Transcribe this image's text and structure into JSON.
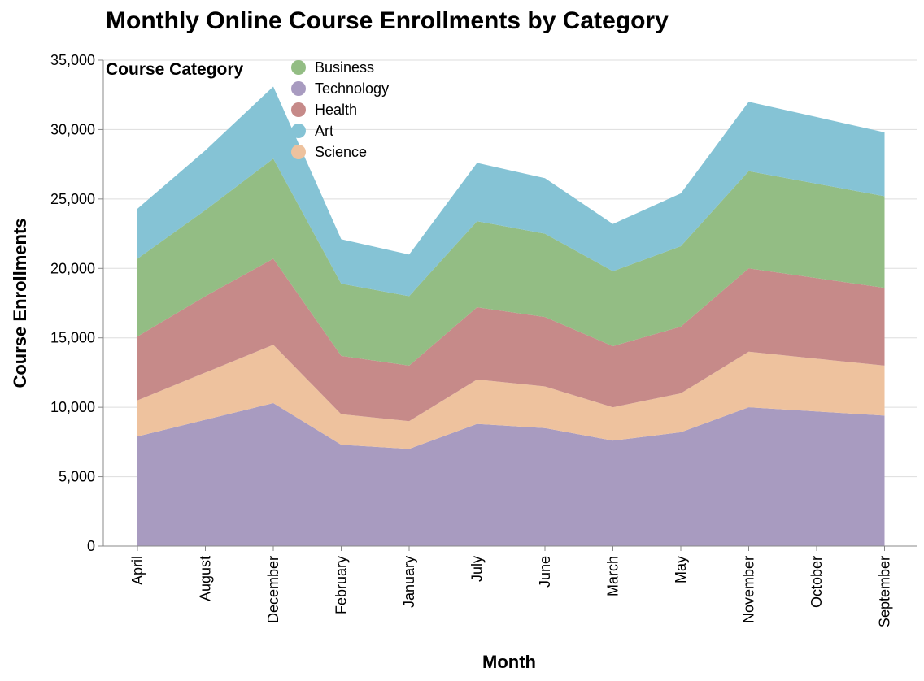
{
  "chart_data": {
    "type": "area",
    "stacked": true,
    "title": "Monthly Online Course Enrollments by Category",
    "xlabel": "Month",
    "ylabel": "Course Enrollments",
    "ylim": [
      0,
      35000
    ],
    "yticks": [
      "0",
      "5,000",
      "10,000",
      "15,000",
      "20,000",
      "25,000",
      "30,000",
      "35,000"
    ],
    "ytick_values": [
      0,
      5000,
      10000,
      15000,
      20000,
      25000,
      30000,
      35000
    ],
    "grid": "horizontal",
    "categories": [
      "April",
      "August",
      "December",
      "February",
      "January",
      "July",
      "June",
      "March",
      "May",
      "November",
      "October",
      "September"
    ],
    "legend": {
      "title": "Course Category",
      "placement": "top-left",
      "entries": [
        "Business",
        "Technology",
        "Health",
        "Art",
        "Science"
      ]
    },
    "series": [
      {
        "name": "Technology",
        "color": "#a89bc0",
        "values": [
          7900,
          9100,
          10300,
          7300,
          7000,
          8800,
          8500,
          7600,
          8200,
          10000,
          9700,
          9400
        ]
      },
      {
        "name": "Science",
        "color": "#eec29e",
        "values": [
          2600,
          3400,
          4200,
          2200,
          2000,
          3200,
          3000,
          2400,
          2800,
          4000,
          3800,
          3600
        ]
      },
      {
        "name": "Health",
        "color": "#c68a89",
        "values": [
          4600,
          5500,
          6200,
          4200,
          4000,
          5200,
          5000,
          4400,
          4800,
          6000,
          5800,
          5600
        ]
      },
      {
        "name": "Business",
        "color": "#93bd84",
        "values": [
          5600,
          6200,
          7200,
          5200,
          5000,
          6200,
          6000,
          5400,
          5800,
          7000,
          6800,
          6600
        ]
      },
      {
        "name": "Art",
        "color": "#85c3d5",
        "values": [
          3600,
          4300,
          5200,
          3200,
          3000,
          4200,
          4000,
          3400,
          3800,
          5000,
          4800,
          4600
        ]
      }
    ],
    "legend_colors": {
      "Business": "#93bd84",
      "Technology": "#a89bc0",
      "Health": "#c68a89",
      "Art": "#85c3d5",
      "Science": "#eec29e"
    }
  }
}
